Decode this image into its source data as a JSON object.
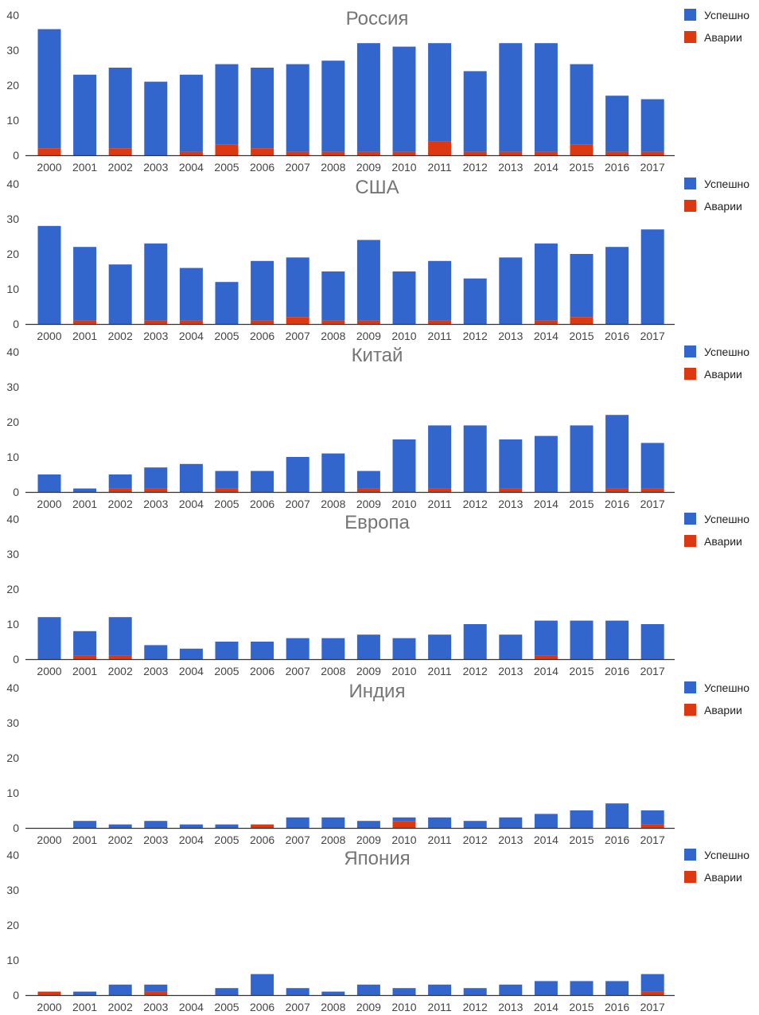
{
  "colors": {
    "success": "#3366cc",
    "failure": "#dc3912",
    "axis": "#333333",
    "text": "#444444",
    "title": "#757575"
  },
  "chart_data": [
    {
      "type": "bar",
      "stacked": true,
      "title": "Россия",
      "categories": [
        "2000",
        "2001",
        "2002",
        "2003",
        "2004",
        "2005",
        "2006",
        "2007",
        "2008",
        "2009",
        "2010",
        "2011",
        "2012",
        "2013",
        "2014",
        "2015",
        "2016",
        "2017"
      ],
      "ylim": [
        0,
        40
      ],
      "yticks": [
        "0",
        "10",
        "20",
        "30",
        "40"
      ],
      "legend": "right",
      "series": [
        {
          "name": "Успешно",
          "values": [
            34,
            23,
            23,
            21,
            22,
            23,
            23,
            25,
            26,
            31,
            30,
            28,
            23,
            31,
            31,
            23,
            16,
            15
          ]
        },
        {
          "name": "Аварии",
          "values": [
            2,
            0,
            2,
            0,
            1,
            3,
            2,
            1,
            1,
            1,
            1,
            4,
            1,
            1,
            1,
            3,
            1,
            1
          ]
        }
      ]
    },
    {
      "type": "bar",
      "stacked": true,
      "title": "США",
      "categories": [
        "2000",
        "2001",
        "2002",
        "2003",
        "2004",
        "2005",
        "2006",
        "2007",
        "2008",
        "2009",
        "2010",
        "2011",
        "2012",
        "2013",
        "2014",
        "2015",
        "2016",
        "2017"
      ],
      "ylim": [
        0,
        40
      ],
      "yticks": [
        "0",
        "10",
        "20",
        "30",
        "40"
      ],
      "legend": "right",
      "series": [
        {
          "name": "Успешно",
          "values": [
            28,
            21,
            17,
            22,
            15,
            12,
            17,
            17,
            14,
            23,
            15,
            17,
            13,
            19,
            22,
            18,
            22,
            27
          ]
        },
        {
          "name": "Аварии",
          "values": [
            0,
            1,
            0,
            1,
            1,
            0,
            1,
            2,
            1,
            1,
            0,
            1,
            0,
            0,
            1,
            2,
            0,
            0
          ]
        }
      ]
    },
    {
      "type": "bar",
      "stacked": true,
      "title": "Китай",
      "categories": [
        "2000",
        "2001",
        "2002",
        "2003",
        "2004",
        "2005",
        "2006",
        "2007",
        "2008",
        "2009",
        "2010",
        "2011",
        "2012",
        "2013",
        "2014",
        "2015",
        "2016",
        "2017"
      ],
      "ylim": [
        0,
        40
      ],
      "yticks": [
        "0",
        "10",
        "20",
        "30",
        "40"
      ],
      "legend": "right",
      "series": [
        {
          "name": "Успешно",
          "values": [
            5,
            1,
            4,
            6,
            8,
            5,
            6,
            10,
            11,
            5,
            15,
            18,
            19,
            14,
            16,
            19,
            21,
            13
          ]
        },
        {
          "name": "Аварии",
          "values": [
            0,
            0,
            1,
            1,
            0,
            1,
            0,
            0,
            0,
            1,
            0,
            1,
            0,
            1,
            0,
            0,
            1,
            1
          ]
        }
      ]
    },
    {
      "type": "bar",
      "stacked": true,
      "title": "Европа",
      "categories": [
        "2000",
        "2001",
        "2002",
        "2003",
        "2004",
        "2005",
        "2006",
        "2007",
        "2008",
        "2009",
        "2010",
        "2011",
        "2012",
        "2013",
        "2014",
        "2015",
        "2016",
        "2017"
      ],
      "ylim": [
        0,
        40
      ],
      "yticks": [
        "0",
        "10",
        "20",
        "30",
        "40"
      ],
      "legend": "right",
      "series": [
        {
          "name": "Успешно",
          "values": [
            12,
            7,
            11,
            4,
            3,
            5,
            5,
            6,
            6,
            7,
            6,
            7,
            10,
            7,
            10,
            11,
            11,
            10
          ]
        },
        {
          "name": "Аварии",
          "values": [
            0,
            1,
            1,
            0,
            0,
            0,
            0,
            0,
            0,
            0,
            0,
            0,
            0,
            0,
            1,
            0,
            0,
            0
          ]
        }
      ]
    },
    {
      "type": "bar",
      "stacked": true,
      "title": "Индия",
      "categories": [
        "2000",
        "2001",
        "2002",
        "2003",
        "2004",
        "2005",
        "2006",
        "2007",
        "2008",
        "2009",
        "2010",
        "2011",
        "2012",
        "2013",
        "2014",
        "2015",
        "2016",
        "2017"
      ],
      "ylim": [
        0,
        40
      ],
      "yticks": [
        "0",
        "10",
        "20",
        "30",
        "40"
      ],
      "legend": "right",
      "series": [
        {
          "name": "Успешно",
          "values": [
            0,
            2,
            1,
            2,
            1,
            1,
            0,
            3,
            3,
            2,
            1,
            3,
            2,
            3,
            4,
            5,
            7,
            4
          ]
        },
        {
          "name": "Аварии",
          "values": [
            0,
            0,
            0,
            0,
            0,
            0,
            1,
            0,
            0,
            0,
            2,
            0,
            0,
            0,
            0,
            0,
            0,
            1
          ]
        }
      ]
    },
    {
      "type": "bar",
      "stacked": true,
      "title": "Япония",
      "categories": [
        "2000",
        "2001",
        "2002",
        "2003",
        "2004",
        "2005",
        "2006",
        "2007",
        "2008",
        "2009",
        "2010",
        "2011",
        "2012",
        "2013",
        "2014",
        "2015",
        "2016",
        "2017"
      ],
      "ylim": [
        0,
        40
      ],
      "yticks": [
        "0",
        "10",
        "20",
        "30",
        "40"
      ],
      "legend": "right",
      "series": [
        {
          "name": "Успешно",
          "values": [
            0,
            1,
            3,
            2,
            0,
            2,
            6,
            2,
            1,
            3,
            2,
            3,
            2,
            3,
            4,
            4,
            4,
            5
          ]
        },
        {
          "name": "Аварии",
          "values": [
            1,
            0,
            0,
            1,
            0,
            0,
            0,
            0,
            0,
            0,
            0,
            0,
            0,
            0,
            0,
            0,
            0,
            1
          ]
        }
      ]
    }
  ]
}
